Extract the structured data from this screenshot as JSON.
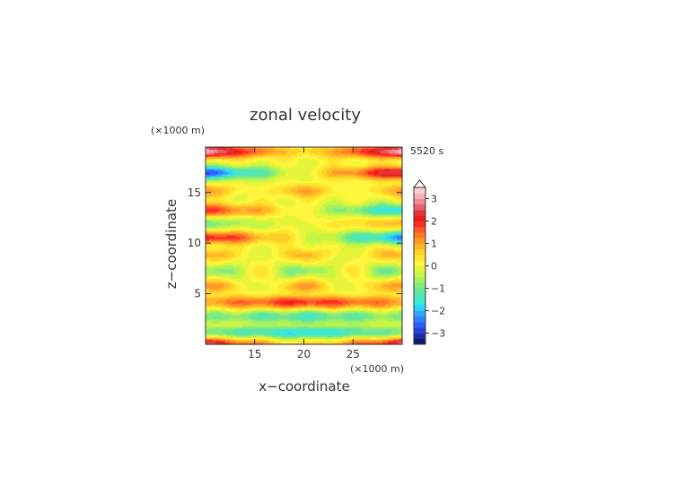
{
  "chart_data": {
    "type": "heatmap",
    "title": "zonal velocity",
    "time_label": "5520 s",
    "xlabel": "x−coordinate",
    "ylabel": "z−coordinate",
    "x_unit": "(×1000 m)",
    "y_unit": "(×1000 m)",
    "xlim": [
      10,
      30
    ],
    "ylim": [
      0,
      19.5
    ],
    "x_ticks": [
      15,
      20,
      25
    ],
    "y_ticks": [
      5,
      10,
      15
    ],
    "x_tick_labels": [
      "15",
      "20",
      "25"
    ],
    "y_tick_labels": [
      "5",
      "10",
      "15"
    ],
    "colorbar": {
      "range": [
        -3.5,
        3.5
      ],
      "step": 0.25,
      "ticks": [
        3,
        2,
        1,
        0,
        -1,
        -2,
        -3
      ],
      "tick_labels": [
        "3",
        "2",
        "1",
        "0",
        "−1",
        "−2",
        "−3"
      ],
      "colors": [
        "#101870",
        "#1c2ea6",
        "#2542d8",
        "#2c5eff",
        "#2f82ff",
        "#33a6ff",
        "#2ecfff",
        "#36e8e0",
        "#4ee8b6",
        "#62e69a",
        "#80ec7e",
        "#a6f060",
        "#c8f444",
        "#e6f53a",
        "#fff53c",
        "#ffe430",
        "#ffcf26",
        "#ffb42a",
        "#ff9a26",
        "#ff7b22",
        "#ff5828",
        "#ff2c20",
        "#ee1a1a",
        "#e03838",
        "#e86070",
        "#f28a94",
        "#f7b0b6",
        "#fbd0d4"
      ]
    },
    "bands": [
      {
        "z": 19.1,
        "amp": 3.3,
        "pat": "A"
      },
      {
        "z": 17.0,
        "amp": 2.7,
        "pat": "B"
      },
      {
        "z": 15.2,
        "amp": 1.0,
        "pat": "C"
      },
      {
        "z": 13.3,
        "amp": -1.9,
        "pat": "B"
      },
      {
        "z": 12.0,
        "amp": 0.9,
        "pat": "B"
      },
      {
        "z": 10.6,
        "amp": -2.3,
        "pat": "B"
      },
      {
        "z": 8.9,
        "amp": 0.9,
        "pat": "D"
      },
      {
        "z": 7.3,
        "amp": -1.0,
        "pat": "D"
      },
      {
        "z": 5.8,
        "amp": 1.1,
        "pat": "D"
      },
      {
        "z": 4.2,
        "amp": 2.0,
        "pat": "E"
      },
      {
        "z": 2.8,
        "amp": -1.4,
        "pat": "E"
      },
      {
        "z": 1.2,
        "amp": -1.8,
        "pat": "E"
      },
      {
        "z": 0.1,
        "amp": 2.6,
        "pat": "A"
      }
    ]
  }
}
